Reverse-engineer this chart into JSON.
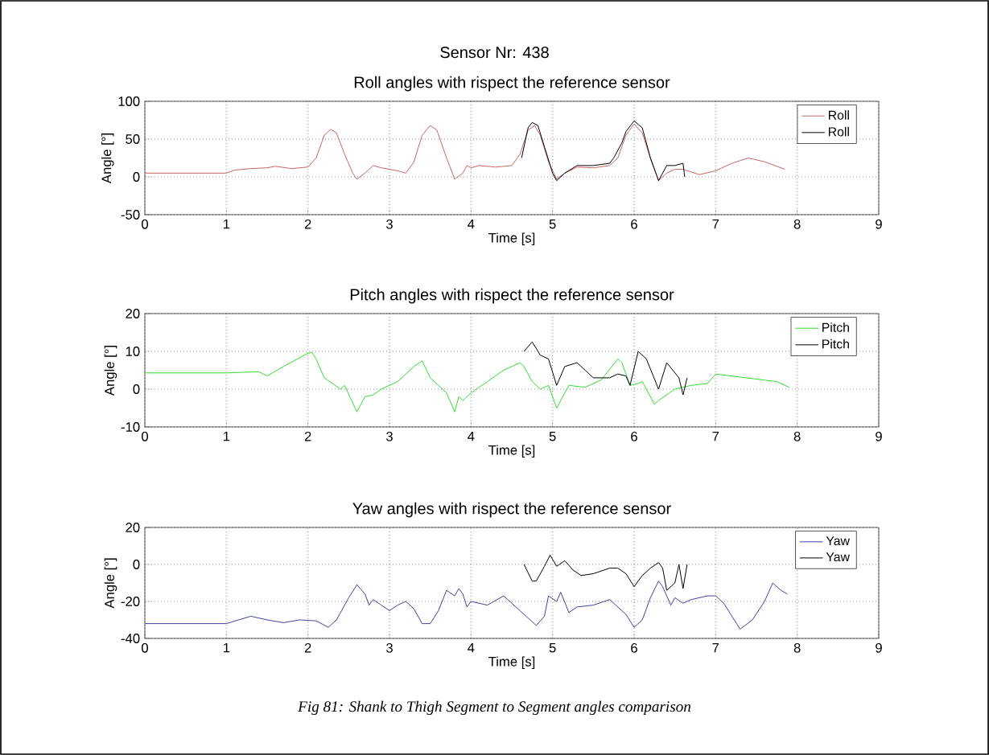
{
  "chart_data": [
    {
      "type": "line",
      "title": "Sensor Nr: 438",
      "subtitle": "Roll angles with rispect the reference sensor",
      "xlabel": "Time [s]",
      "ylabel": "Angle [°]",
      "xlim": [
        0,
        9
      ],
      "xticks": [
        0,
        1,
        2,
        3,
        4,
        5,
        6,
        7,
        8,
        9
      ],
      "ylim": [
        -50,
        100
      ],
      "yticks": [
        -50,
        0,
        50,
        100
      ],
      "grid": true,
      "legend": "top right",
      "series": [
        {
          "name": "Roll",
          "color": "#c86464",
          "x": [
            0,
            1,
            1.1,
            1.3,
            1.5,
            1.6,
            1.8,
            2.0,
            2.1,
            2.2,
            2.28,
            2.35,
            2.45,
            2.55,
            2.6,
            2.7,
            2.8,
            2.9,
            3.1,
            3.2,
            3.3,
            3.4,
            3.5,
            3.58,
            3.7,
            3.8,
            3.9,
            3.95,
            4.0,
            4.1,
            4.3,
            4.5,
            4.6,
            4.7,
            4.78,
            4.85,
            4.95,
            5.05,
            5.15,
            5.3,
            5.5,
            5.7,
            5.8,
            5.9,
            6.0,
            6.1,
            6.2,
            6.3,
            6.4,
            6.5,
            6.6,
            6.8,
            7.0,
            7.2,
            7.4,
            7.6,
            7.85
          ],
          "values": [
            5,
            5,
            9,
            11,
            12,
            14,
            11,
            13,
            25,
            55,
            63,
            58,
            30,
            5,
            -3,
            5,
            15,
            12,
            8,
            5,
            20,
            55,
            68,
            62,
            25,
            -3,
            5,
            15,
            12,
            15,
            13,
            15,
            30,
            62,
            68,
            55,
            20,
            -3,
            5,
            13,
            12,
            15,
            25,
            55,
            70,
            58,
            25,
            -5,
            5,
            10,
            10,
            3,
            8,
            18,
            25,
            20,
            10
          ]
        },
        {
          "name": "Roll",
          "color": "#000000",
          "x": [
            4.62,
            4.7,
            4.75,
            4.82,
            4.9,
            5.0,
            5.05,
            5.15,
            5.3,
            5.5,
            5.7,
            5.75,
            5.85,
            5.9,
            6.0,
            6.1,
            6.2,
            6.3,
            6.4,
            6.5,
            6.6,
            6.62
          ],
          "values": [
            25,
            65,
            72,
            68,
            40,
            5,
            -5,
            5,
            15,
            15,
            18,
            25,
            45,
            60,
            74,
            65,
            25,
            -5,
            15,
            15,
            18,
            0
          ]
        }
      ]
    },
    {
      "type": "line",
      "title": "Pitch angles with rispect the reference sensor",
      "xlabel": "Time [s]",
      "ylabel": "Angle [°]",
      "xlim": [
        0,
        9
      ],
      "xticks": [
        0,
        1,
        2,
        3,
        4,
        5,
        6,
        7,
        8,
        9
      ],
      "ylim": [
        -10,
        20
      ],
      "yticks": [
        -10,
        0,
        10,
        20
      ],
      "grid": true,
      "legend": "top right",
      "series": [
        {
          "name": "Pitch",
          "color": "#33dd33",
          "x": [
            0,
            1,
            1.4,
            1.5,
            1.7,
            2.0,
            2.05,
            2.1,
            2.2,
            2.3,
            2.4,
            2.45,
            2.6,
            2.7,
            2.8,
            2.9,
            3.1,
            3.3,
            3.4,
            3.5,
            3.6,
            3.7,
            3.8,
            3.85,
            3.9,
            4.0,
            4.2,
            4.4,
            4.6,
            4.65,
            4.75,
            4.85,
            4.95,
            5.05,
            5.15,
            5.2,
            5.4,
            5.6,
            5.8,
            5.85,
            5.95,
            6.05,
            6.1,
            6.25,
            6.3,
            6.5,
            6.7,
            6.9,
            7.0,
            7.75,
            7.9
          ],
          "values": [
            4.3,
            4.3,
            4.6,
            3.5,
            6,
            9.5,
            9.7,
            8,
            3,
            1.5,
            0,
            1,
            -6,
            -2,
            -1.5,
            0,
            2,
            6,
            7.5,
            3,
            1,
            -1,
            -6,
            -2,
            -3,
            -1,
            2,
            5,
            7,
            6,
            2,
            0,
            1,
            -5,
            -1,
            1,
            0.5,
            2.5,
            8,
            7,
            1,
            1.5,
            2,
            -4,
            -3,
            0,
            1,
            1.5,
            4,
            2,
            0.5
          ]
        },
        {
          "name": "Pitch",
          "color": "#000000",
          "x": [
            4.65,
            4.75,
            4.85,
            4.95,
            5.05,
            5.15,
            5.3,
            5.4,
            5.5,
            5.7,
            5.8,
            5.9,
            5.95,
            6.05,
            6.15,
            6.3,
            6.4,
            6.55,
            6.6,
            6.65
          ],
          "values": [
            10,
            12.5,
            9,
            8,
            1,
            6,
            7,
            5,
            3,
            3,
            4,
            3.5,
            1,
            10,
            8,
            0,
            7,
            3,
            -1.5,
            3
          ]
        }
      ]
    },
    {
      "type": "line",
      "title": "Yaw angles with rispect the reference sensor",
      "xlabel": "Time [s]",
      "ylabel": "Angle [°]",
      "xlim": [
        0,
        9
      ],
      "xticks": [
        0,
        1,
        2,
        3,
        4,
        5,
        6,
        7,
        8,
        9
      ],
      "ylim": [
        -40,
        20
      ],
      "yticks": [
        -40,
        -20,
        0,
        20
      ],
      "grid": true,
      "legend": "top right",
      "annotations": [
        "Fig 81: Shank to Thigh Segment to Segment angles comparison"
      ],
      "series": [
        {
          "name": "Yaw",
          "color": "#4040a0",
          "x": [
            0,
            1,
            1.3,
            1.5,
            1.7,
            1.9,
            2.1,
            2.25,
            2.35,
            2.5,
            2.6,
            2.7,
            2.75,
            2.8,
            2.9,
            3.0,
            3.1,
            3.2,
            3.3,
            3.4,
            3.5,
            3.6,
            3.7,
            3.8,
            3.85,
            3.9,
            3.95,
            4.0,
            4.2,
            4.4,
            4.6,
            4.8,
            4.9,
            4.95,
            5.05,
            5.1,
            5.2,
            5.3,
            5.5,
            5.7,
            5.9,
            6.0,
            6.1,
            6.2,
            6.3,
            6.35,
            6.45,
            6.5,
            6.6,
            6.7,
            6.9,
            7.0,
            7.1,
            7.3,
            7.45,
            7.6,
            7.7,
            7.8,
            7.88
          ],
          "values": [
            -32,
            -32,
            -28,
            -30,
            -31.5,
            -30,
            -30.5,
            -34,
            -30,
            -18,
            -11,
            -16,
            -22,
            -19,
            -22,
            -25,
            -22,
            -20,
            -24,
            -32,
            -32,
            -25,
            -14,
            -17,
            -13,
            -16,
            -23,
            -20,
            -22,
            -17,
            -25,
            -33,
            -28,
            -17,
            -20,
            -15,
            -26,
            -23,
            -22,
            -19,
            -27,
            -34,
            -30,
            -18,
            -9,
            -12,
            -22,
            -18,
            -21,
            -19,
            -17,
            -17,
            -21,
            -35,
            -30,
            -20,
            -10,
            -14,
            -16
          ]
        },
        {
          "name": "Yaw",
          "color": "#000000",
          "x": [
            4.65,
            4.75,
            4.8,
            4.9,
            4.97,
            5.05,
            5.15,
            5.25,
            5.35,
            5.5,
            5.7,
            5.8,
            5.9,
            6.0,
            6.1,
            6.2,
            6.3,
            6.35,
            6.4,
            6.5,
            6.55,
            6.6,
            6.65
          ],
          "values": [
            0,
            -9,
            -9,
            -1,
            5,
            -1,
            2,
            -3,
            -6,
            -5,
            -2,
            -2,
            -5,
            -12,
            -6,
            -2,
            1,
            -2,
            -14,
            -10,
            0,
            -13,
            0
          ]
        }
      ]
    }
  ]
}
